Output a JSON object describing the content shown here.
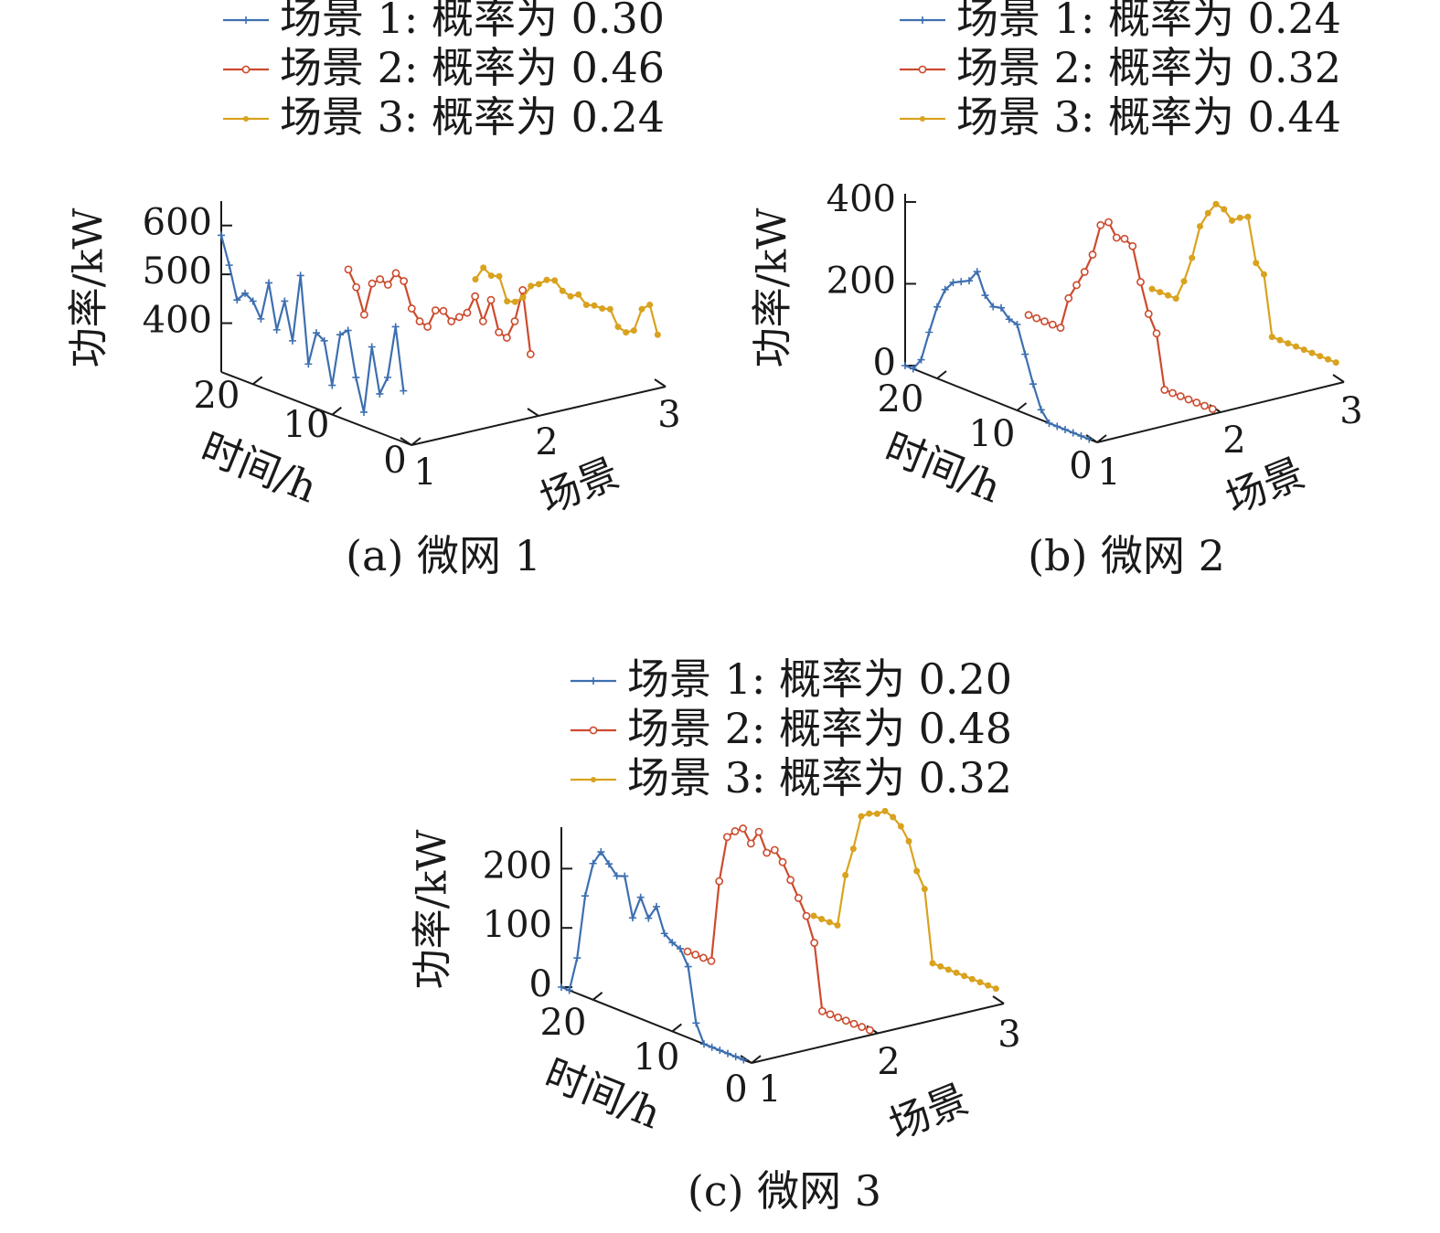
{
  "chart_data": [
    {
      "type": "line",
      "subtype": "3d-waterfall",
      "caption": "(a) 微网 1",
      "xlabel": "时间/h",
      "ylabel": "场景",
      "zlabel": "功率/kW",
      "x_ticks": [
        "0",
        "10",
        "20"
      ],
      "y_ticks": [
        "1",
        "2",
        "3"
      ],
      "z_ticks": [
        "400",
        "500",
        "600"
      ],
      "xlim": [
        0,
        24
      ],
      "zlim": [
        300,
        650
      ],
      "colors": [
        "#3d6fb0",
        "#cc4b2e",
        "#d9a21f"
      ],
      "markers": [
        "plus",
        "circle",
        "dot"
      ],
      "series": [
        {
          "name": "场景 1: 概率为 0.30",
          "scenario": 1,
          "x": [
            1,
            2,
            3,
            4,
            5,
            6,
            7,
            8,
            9,
            10,
            11,
            12,
            13,
            14,
            15,
            16,
            17,
            18,
            19,
            20,
            21,
            22,
            23,
            24
          ],
          "values": [
            405,
            530,
            420,
            380,
            470,
            330,
            395,
            485,
            470,
            360,
            445,
            455,
            385,
            560,
            420,
            495,
            430,
            520,
            440,
            470,
            480,
            460,
            525,
            580
          ]
        },
        {
          "name": "场景 2: 概率为 0.46",
          "scenario": 2,
          "x": [
            1,
            2,
            3,
            4,
            5,
            6,
            7,
            8,
            9,
            10,
            11,
            12,
            13,
            14,
            15,
            16,
            17,
            18,
            19,
            20,
            21,
            22,
            23,
            24
          ],
          "values": [
            420,
            545,
            475,
            435,
            440,
            500,
            450,
            495,
            455,
            440,
            425,
            440,
            435,
            395,
            400,
            420,
            470,
            480,
            450,
            455,
            440,
            370,
            420,
            450
          ]
        },
        {
          "name": "场景 3: 概率为 0.24",
          "scenario": 3,
          "x": [
            1,
            2,
            3,
            4,
            5,
            6,
            7,
            8,
            9,
            10,
            11,
            12,
            13,
            14,
            15,
            16,
            17,
            18,
            19,
            20,
            21,
            22,
            23,
            24
          ],
          "values": [
            400,
            455,
            440,
            390,
            380,
            385,
            415,
            410,
            410,
            405,
            420,
            410,
            415,
            430,
            425,
            410,
            400,
            370,
            355,
            350,
            395,
            390,
            400,
            370
          ]
        }
      ],
      "legend": [
        {
          "label": "场景 1: 概率为 0.30"
        },
        {
          "label": "场景 2: 概率为 0.46"
        },
        {
          "label": "场景 3: 概率为 0.24"
        }
      ],
      "legend_position": "top",
      "grid": false
    },
    {
      "type": "line",
      "subtype": "3d-waterfall",
      "caption": "(b) 微网 2",
      "xlabel": "时间/h",
      "ylabel": "场景",
      "zlabel": "功率/kW",
      "x_ticks": [
        "0",
        "10",
        "20"
      ],
      "y_ticks": [
        "1",
        "2",
        "3"
      ],
      "z_ticks": [
        "0",
        "200",
        "400"
      ],
      "xlim": [
        0,
        24
      ],
      "zlim": [
        0,
        420
      ],
      "colors": [
        "#3d6fb0",
        "#cc4b2e",
        "#d9a21f"
      ],
      "markers": [
        "plus",
        "circle",
        "dot"
      ],
      "series": [
        {
          "name": "场景 1: 概率为 0.24",
          "scenario": 1,
          "x": [
            1,
            2,
            3,
            4,
            5,
            6,
            7,
            8,
            9,
            10,
            11,
            12,
            13,
            14,
            15,
            16,
            17,
            18,
            19,
            20,
            21,
            22,
            23,
            24
          ],
          "values": [
            0,
            0,
            0,
            0,
            0,
            0,
            25,
            80,
            145,
            210,
            215,
            235,
            230,
            250,
            300,
            270,
            260,
            250,
            225,
            175,
            105,
            30,
            0,
            0
          ]
        },
        {
          "name": "场景 2: 概率为 0.32",
          "scenario": 2,
          "x": [
            1,
            2,
            3,
            4,
            5,
            6,
            7,
            8,
            9,
            10,
            11,
            12,
            13,
            14,
            15,
            16,
            17,
            18,
            19,
            20,
            21,
            22,
            23,
            24
          ],
          "values": [
            0,
            0,
            0,
            0,
            0,
            0,
            0,
            130,
            170,
            240,
            320,
            330,
            325,
            355,
            340,
            260,
            210,
            170,
            130,
            50,
            50,
            50,
            50,
            50
          ],
          "note_values_approximate": true
        },
        {
          "name": "场景 3: 概率为 0.44",
          "scenario": 3,
          "x": [
            1,
            2,
            3,
            4,
            5,
            6,
            7,
            8,
            9,
            10,
            11,
            12,
            13,
            14,
            15,
            16,
            17,
            18,
            19,
            20,
            21,
            22,
            23,
            24
          ],
          "values": [
            40,
            40,
            40,
            40,
            40,
            40,
            40,
            40,
            40,
            185,
            205,
            310,
            300,
            285,
            305,
            310,
            280,
            240,
            155,
            90,
            40,
            40,
            40,
            40
          ]
        }
      ],
      "legend": [
        {
          "label": "场景 1: 概率为 0.24"
        },
        {
          "label": "场景 2: 概率为 0.32"
        },
        {
          "label": "场景 3: 概率为 0.44"
        }
      ],
      "legend_position": "top",
      "grid": false
    },
    {
      "type": "line",
      "subtype": "3d-waterfall",
      "caption": "(c) 微网 3",
      "xlabel": "时间/h",
      "ylabel": "场景",
      "zlabel": "功率/kW",
      "x_ticks": [
        "0",
        "10",
        "20"
      ],
      "y_ticks": [
        "1",
        "2",
        "3"
      ],
      "z_ticks": [
        "0",
        "100",
        "200"
      ],
      "xlim": [
        0,
        24
      ],
      "zlim": [
        0,
        270
      ],
      "colors": [
        "#3d6fb0",
        "#cc4b2e",
        "#d9a21f"
      ],
      "markers": [
        "plus",
        "circle",
        "dot"
      ],
      "series": [
        {
          "name": "场景 1: 概率为 0.20",
          "scenario": 1,
          "x": [
            1,
            2,
            3,
            4,
            5,
            6,
            7,
            8,
            9,
            10,
            11,
            12,
            13,
            14,
            15,
            16,
            17,
            18,
            19,
            20,
            21,
            22,
            23,
            24
          ],
          "values": [
            0,
            0,
            0,
            0,
            0,
            0,
            30,
            120,
            145,
            150,
            160,
            200,
            175,
            205,
            165,
            230,
            225,
            240,
            255,
            230,
            170,
            60,
            0,
            0
          ]
        },
        {
          "name": "场景 2: 概率为 0.48",
          "scenario": 2,
          "x": [
            1,
            2,
            3,
            4,
            5,
            6,
            7,
            8,
            9,
            10,
            11,
            12,
            13,
            14,
            15,
            16,
            17,
            18,
            19,
            20,
            21,
            22,
            23,
            24
          ],
          "values": [
            0,
            0,
            0,
            0,
            0,
            0,
            0,
            110,
            150,
            175,
            200,
            225,
            240,
            230,
            260,
            235,
            255,
            245,
            230,
            150,
            10,
            10,
            10,
            10
          ]
        },
        {
          "name": "场景 3: 概率为 0.32",
          "scenario": 3,
          "x": [
            1,
            2,
            3,
            4,
            5,
            6,
            7,
            8,
            9,
            10,
            11,
            12,
            13,
            14,
            15,
            16,
            17,
            18,
            19,
            20,
            21,
            22,
            23,
            24
          ],
          "values": [
            20,
            20,
            20,
            20,
            20,
            20,
            20,
            20,
            20,
            140,
            165,
            210,
            230,
            240,
            245,
            235,
            230,
            220,
            160,
            110,
            20,
            20,
            20,
            20
          ]
        }
      ],
      "legend": [
        {
          "label": "场景 1: 概率为 0.20"
        },
        {
          "label": "场景 2: 概率为 0.48"
        },
        {
          "label": "场景 3: 概率为 0.32"
        }
      ],
      "legend_position": "top",
      "grid": false
    }
  ]
}
